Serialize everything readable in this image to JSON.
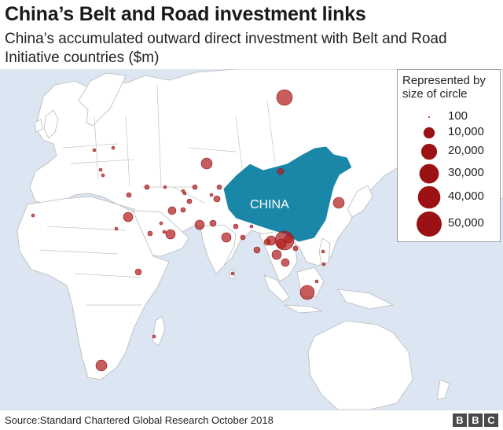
{
  "title": "China’s Belt and Road investment links",
  "subtitle": "China’s accumulated outward direct investment with Belt and Road Initiative countries ($m)",
  "map": {
    "highlight_label": "CHINA",
    "highlight_color": "#1a86a8",
    "bubble_color": "#b31e20",
    "ocean_color": "#dce6f2",
    "land_color": "#ffffff"
  },
  "legend": {
    "title": "Represented by size of circle",
    "items": [
      {
        "label": "100",
        "value": 100
      },
      {
        "label": "10,000",
        "value": 10000
      },
      {
        "label": "20,000",
        "value": 20000
      },
      {
        "label": "30,000",
        "value": 30000
      },
      {
        "label": "40,000",
        "value": 40000
      },
      {
        "label": "50,000",
        "value": 50000
      }
    ]
  },
  "footer": {
    "source": "Source:Standard Chartered Global Research October 2018",
    "logo_letters": [
      "B",
      "B",
      "C"
    ]
  }
}
